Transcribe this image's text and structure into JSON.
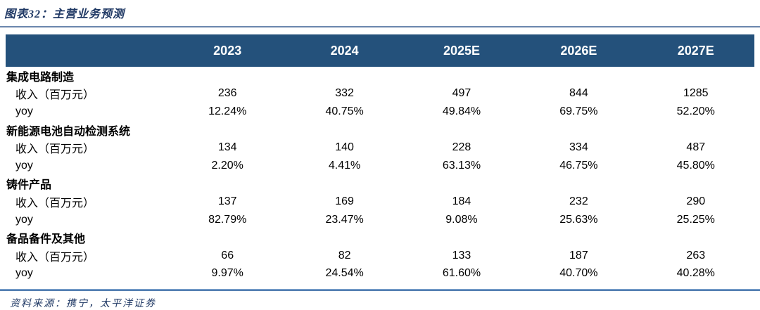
{
  "header": {
    "title": "图表32：主营业务预测"
  },
  "footer": {
    "source": "资料来源：携宁，太平洋证券"
  },
  "colors": {
    "header_bar": "#24517b",
    "title_text": "#1f3864",
    "top_rule": "#2e4f7f",
    "bottom_rule": "#4673a8",
    "body_text": "#000000",
    "header_text": "#ffffff"
  },
  "chart_data": {
    "type": "table",
    "title": "图表32：主营业务预测",
    "columns": [
      "2023",
      "2024",
      "2025E",
      "2026E",
      "2027E"
    ],
    "row_labels": {
      "revenue": "收入（百万元）",
      "yoy": "yoy"
    },
    "sections": [
      {
        "name": "集成电路制造",
        "revenue": [
          "236",
          "332",
          "497",
          "844",
          "1285"
        ],
        "yoy": [
          "12.24%",
          "40.75%",
          "49.84%",
          "69.75%",
          "52.20%"
        ]
      },
      {
        "name": "新能源电池自动检测系统",
        "revenue": [
          "134",
          "140",
          "228",
          "334",
          "487"
        ],
        "yoy": [
          "2.20%",
          "4.41%",
          "63.13%",
          "46.75%",
          "45.80%"
        ]
      },
      {
        "name": "铸件产品",
        "revenue": [
          "137",
          "169",
          "184",
          "232",
          "290"
        ],
        "yoy": [
          "82.79%",
          "23.47%",
          "9.08%",
          "25.63%",
          "25.25%"
        ]
      },
      {
        "name": "备品备件及其他",
        "revenue": [
          "66",
          "82",
          "133",
          "187",
          "263"
        ],
        "yoy": [
          "9.97%",
          "24.54%",
          "61.60%",
          "40.70%",
          "40.28%"
        ]
      }
    ]
  }
}
